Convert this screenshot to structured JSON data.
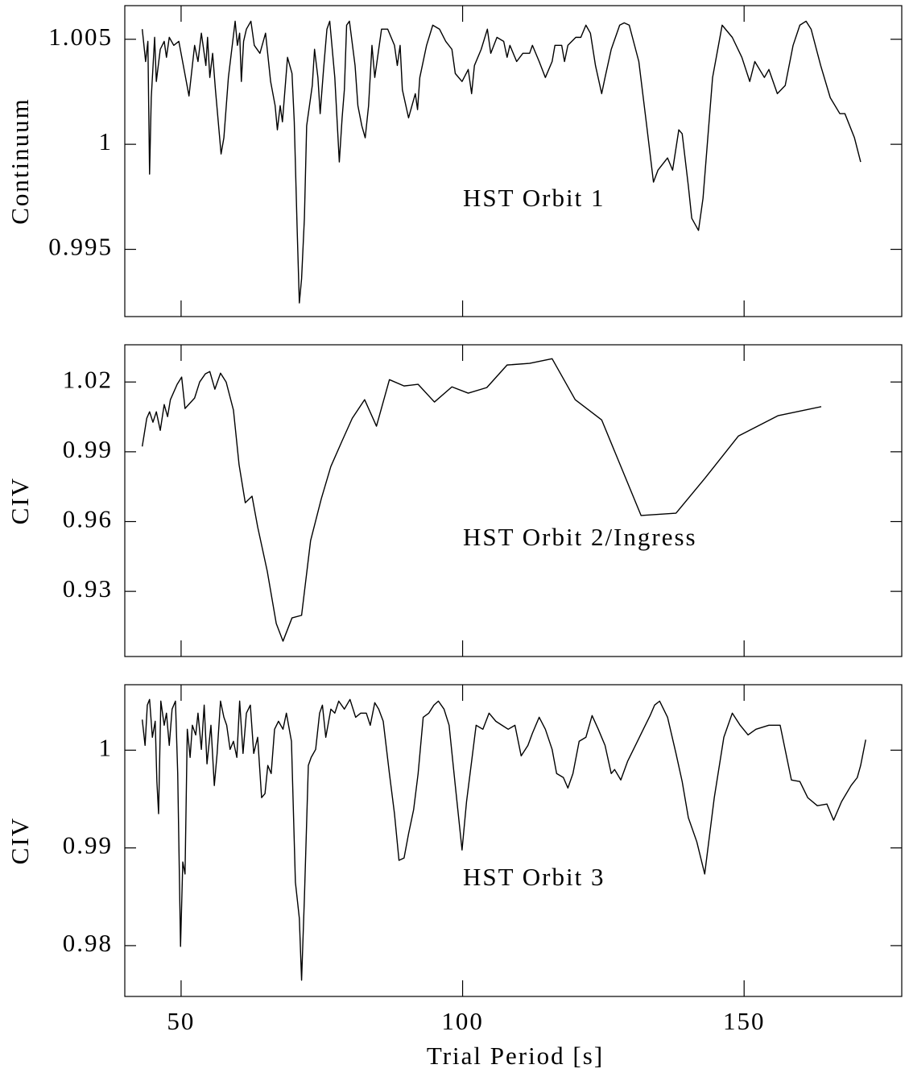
{
  "chart_data": [
    {
      "type": "line",
      "ylabel": "Continuum",
      "annotation": "HST Orbit 1",
      "color": "#000000",
      "xlim": [
        40,
        178
      ],
      "xticks": [
        50,
        100,
        150
      ],
      "ylim": [
        0.9918,
        1.0066
      ],
      "yticks": [
        0.995,
        1,
        1.005
      ],
      "x": [
        43.1,
        43.7,
        44.1,
        44.4,
        44.7,
        45.3,
        45.6,
        46.3,
        47.0,
        47.4,
        47.9,
        48.7,
        49.6,
        50.4,
        51.4,
        52.4,
        53.0,
        53.6,
        54.4,
        54.7,
        55.1,
        55.6,
        56.1,
        56.6,
        57.1,
        57.6,
        58.4,
        59.6,
        60.0,
        60.4,
        60.7,
        61.1,
        61.6,
        62.4,
        63.0,
        64.0,
        65.0,
        65.9,
        66.7,
        67.1,
        67.6,
        68.0,
        68.9,
        69.7,
        70.1,
        70.6,
        71.0,
        71.4,
        71.9,
        72.3,
        73.3,
        73.7,
        74.3,
        74.7,
        75.3,
        75.9,
        76.4,
        77.3,
        78.1,
        78.6,
        79.0,
        79.4,
        79.9,
        80.9,
        81.4,
        82.1,
        82.7,
        83.3,
        83.9,
        84.4,
        85.6,
        86.7,
        87.9,
        88.4,
        88.9,
        89.3,
        90.4,
        91.6,
        92.0,
        92.4,
        93.6,
        94.7,
        95.9,
        97.0,
        98.1,
        98.7,
        99.9,
        101.0,
        101.6,
        102.1,
        103.3,
        104.4,
        105.0,
        106.1,
        107.3,
        107.9,
        108.4,
        109.6,
        110.7,
        111.9,
        112.4,
        113.6,
        114.7,
        115.9,
        116.4,
        117.6,
        118.1,
        118.7,
        120.1,
        121.0,
        121.9,
        122.7,
        123.6,
        124.7,
        125.3,
        126.4,
        127.9,
        128.7,
        129.6,
        131.3,
        132.7,
        133.9,
        134.7,
        136.4,
        137.3,
        138.4,
        139.0,
        140.1,
        140.7,
        141.9,
        142.7,
        144.4,
        146.1,
        147.9,
        149.6,
        151.0,
        151.9,
        153.6,
        154.4,
        155.9,
        157.3,
        158.7,
        159.9,
        161.0,
        161.9,
        163.6,
        165.3,
        167.0,
        167.9,
        169.6,
        170.7
      ],
      "values": [
        1.00548,
        1.00394,
        1.0049,
        0.99858,
        1.00222,
        1.00509,
        1.00299,
        1.00452,
        1.0049,
        1.00414,
        1.00509,
        1.00471,
        1.0049,
        1.00375,
        1.0023,
        1.00471,
        1.00394,
        1.00529,
        1.00375,
        1.00509,
        1.00318,
        1.00433,
        1.0026,
        1.00107,
        0.99954,
        1.00031,
        1.00318,
        1.00586,
        1.00471,
        1.00529,
        1.00299,
        1.0049,
        1.00548,
        1.00586,
        1.00471,
        1.00433,
        1.00529,
        1.00299,
        1.00184,
        1.00069,
        1.00184,
        1.00107,
        1.00414,
        1.00337,
        1.00107,
        0.99609,
        0.99245,
        0.9936,
        0.99648,
        1.00088,
        1.0028,
        1.00452,
        1.00318,
        1.00146,
        1.00356,
        1.00548,
        1.00586,
        1.00318,
        0.99916,
        1.00126,
        1.0026,
        1.00567,
        1.00586,
        1.00375,
        1.00184,
        1.00088,
        1.00031,
        1.00184,
        1.00471,
        1.00318,
        1.00548,
        1.00548,
        1.00471,
        1.00375,
        1.00471,
        1.0026,
        1.00126,
        1.00241,
        1.00165,
        1.00318,
        1.00471,
        1.00567,
        1.00548,
        1.0049,
        1.00452,
        1.00337,
        1.00299,
        1.00356,
        1.00241,
        1.00375,
        1.00452,
        1.00548,
        1.00433,
        1.00509,
        1.0049,
        1.00414,
        1.00471,
        1.00394,
        1.00433,
        1.00433,
        1.00471,
        1.00394,
        1.00318,
        1.00394,
        1.00471,
        1.00471,
        1.00394,
        1.00471,
        1.00509,
        1.00509,
        1.00567,
        1.00529,
        1.00375,
        1.00241,
        1.00318,
        1.00452,
        1.00567,
        1.00578,
        1.00567,
        1.00394,
        1.00088,
        0.9982,
        0.99877,
        0.99935,
        0.99877,
        1.00069,
        1.0005,
        0.99801,
        0.99648,
        0.9959,
        0.99743,
        1.00318,
        1.00567,
        1.00509,
        1.00414,
        1.00299,
        1.00394,
        1.00318,
        1.00356,
        1.00241,
        1.0028,
        1.00471,
        1.00567,
        1.00586,
        1.00548,
        1.00375,
        1.00222,
        1.00146,
        1.00146,
        1.00031,
        0.99916
      ]
    },
    {
      "type": "line",
      "ylabel": "CIV",
      "annotation": "HST Orbit 2/Ingress",
      "color": "#000000",
      "xlim": [
        40,
        178
      ],
      "xticks": [
        50,
        100,
        150
      ],
      "ylim": [
        0.902,
        1.036
      ],
      "yticks": [
        0.93,
        0.96,
        0.99,
        1.02
      ],
      "x": [
        43.1,
        43.9,
        44.4,
        45.0,
        45.6,
        46.3,
        47.0,
        47.6,
        48.1,
        49.3,
        50.1,
        50.7,
        52.4,
        53.3,
        54.3,
        55.1,
        56.0,
        57.0,
        58.0,
        59.3,
        60.3,
        61.4,
        62.6,
        63.6,
        65.3,
        66.9,
        68.1,
        69.7,
        71.4,
        73.0,
        74.9,
        76.6,
        78.6,
        80.4,
        82.6,
        84.7,
        87.0,
        89.6,
        92.1,
        95.0,
        98.1,
        101.0,
        104.3,
        107.9,
        111.9,
        115.9,
        120.0,
        124.7,
        131.7,
        137.9,
        143.0,
        149.0,
        156.0,
        163.7
      ],
      "values": [
        0.9923,
        1.0044,
        1.0072,
        1.0027,
        1.0072,
        0.9992,
        1.0103,
        1.0051,
        1.0124,
        1.019,
        1.0221,
        1.0086,
        1.0131,
        1.02,
        1.0235,
        1.0245,
        1.0169,
        1.0238,
        1.02,
        1.0079,
        0.9844,
        0.9681,
        0.9709,
        0.9577,
        0.9387,
        0.9162,
        0.9086,
        0.9186,
        0.9197,
        0.9518,
        0.9698,
        0.9837,
        0.9947,
        1.0044,
        1.0124,
        1.001,
        1.021,
        1.0183,
        1.019,
        1.0114,
        1.0179,
        1.0152,
        1.0176,
        1.0273,
        1.028,
        1.03,
        1.0124,
        1.0037,
        0.9626,
        0.9636,
        0.9785,
        0.9968,
        1.0055,
        1.0094
      ]
    },
    {
      "type": "line",
      "ylabel": "CIV",
      "annotation": "HST Orbit 3",
      "xlabel": "Trial Period [s]",
      "color": "#000000",
      "xlim": [
        40,
        178
      ],
      "xticks": [
        50,
        100,
        150
      ],
      "ylim": [
        0.9748,
        1.0067
      ],
      "yticks": [
        0.98,
        0.99,
        1
      ],
      "x": [
        43.1,
        43.6,
        44.0,
        44.4,
        44.9,
        45.4,
        45.7,
        46.0,
        46.4,
        47.0,
        47.4,
        47.9,
        48.4,
        49.0,
        49.4,
        49.9,
        50.3,
        50.7,
        51.1,
        51.6,
        52.0,
        52.6,
        53.0,
        53.6,
        54.1,
        54.6,
        55.3,
        55.9,
        56.4,
        57.0,
        57.6,
        58.1,
        58.7,
        59.3,
        59.9,
        60.4,
        61.0,
        61.6,
        62.3,
        62.9,
        63.6,
        64.3,
        64.9,
        65.4,
        66.0,
        66.6,
        67.3,
        68.1,
        68.7,
        69.6,
        70.3,
        71.0,
        71.4,
        71.9,
        72.6,
        73.1,
        73.9,
        74.6,
        75.1,
        75.7,
        76.6,
        77.3,
        78.0,
        79.0,
        80.0,
        81.0,
        81.9,
        82.9,
        83.6,
        84.4,
        85.1,
        85.9,
        87.0,
        87.9,
        88.7,
        89.6,
        90.4,
        91.3,
        92.1,
        93.0,
        94.0,
        94.9,
        95.7,
        96.7,
        97.6,
        98.7,
        99.9,
        100.7,
        101.6,
        102.4,
        103.6,
        104.7,
        105.9,
        107.0,
        108.1,
        109.3,
        110.4,
        111.6,
        112.4,
        113.6,
        114.7,
        115.9,
        116.7,
        117.9,
        118.7,
        119.6,
        120.7,
        121.9,
        123.0,
        124.1,
        125.3,
        126.4,
        127.0,
        128.1,
        129.3,
        130.7,
        132.1,
        133.3,
        134.1,
        135.0,
        136.4,
        137.9,
        139.0,
        140.1,
        141.6,
        143.0,
        144.7,
        146.4,
        147.9,
        149.3,
        150.7,
        152.1,
        154.4,
        156.4,
        158.4,
        159.9,
        161.3,
        163.0,
        164.7,
        165.9,
        167.3,
        169.0,
        170.1,
        170.7,
        171.6
      ],
      "values": [
        1.00313,
        1.00049,
        1.00461,
        1.00519,
        1.00132,
        1.00296,
        0.99679,
        0.9935,
        1.00502,
        1.00255,
        1.00379,
        1.00049,
        1.0042,
        1.00502,
        0.99761,
        0.97992,
        0.98856,
        0.98733,
        1.00214,
        0.99926,
        1.00255,
        1.00156,
        1.00379,
        1.00008,
        1.00461,
        0.9986,
        1.00255,
        0.99638,
        0.99967,
        1.00502,
        1.00337,
        1.00255,
        1.00008,
        1.00091,
        0.99926,
        1.00502,
        0.99967,
        1.00379,
        1.00461,
        0.99967,
        1.00132,
        0.99514,
        0.99556,
        0.99844,
        0.99761,
        1.00214,
        1.00296,
        1.00214,
        1.00379,
        1.00091,
        0.9865,
        0.9828,
        0.97646,
        0.98486,
        0.99844,
        0.99926,
        1.00008,
        1.00379,
        1.00461,
        1.00132,
        1.0042,
        1.00379,
        1.00502,
        1.0042,
        1.00519,
        1.00337,
        1.00379,
        1.00379,
        1.00255,
        1.00486,
        1.0042,
        1.00296,
        0.99761,
        0.9935,
        0.98873,
        0.98897,
        0.99144,
        0.99391,
        0.99761,
        1.00337,
        1.00379,
        1.00461,
        1.00502,
        1.0042,
        1.00255,
        0.99638,
        0.98979,
        0.99473,
        0.99885,
        1.00255,
        1.00214,
        1.00379,
        1.00296,
        1.00255,
        1.00214,
        1.00255,
        0.99942,
        1.00049,
        1.00173,
        1.00337,
        1.00214,
        1.00008,
        0.99761,
        0.9972,
        0.99613,
        0.99761,
        1.00091,
        1.00132,
        1.00354,
        1.00214,
        1.00049,
        0.99761,
        0.99802,
        0.99695,
        0.99885,
        1.00049,
        1.00214,
        1.00354,
        1.00461,
        1.00502,
        1.00337,
        0.99967,
        0.99679,
        0.99309,
        0.99062,
        0.98733,
        0.99514,
        1.00132,
        1.00379,
        1.00255,
        1.00156,
        1.00214,
        1.00255,
        1.00255,
        0.99695,
        0.99679,
        0.99514,
        0.99432,
        0.99449,
        0.99284,
        0.99473,
        0.99638,
        0.9972,
        0.99844,
        1.00107
      ]
    }
  ]
}
